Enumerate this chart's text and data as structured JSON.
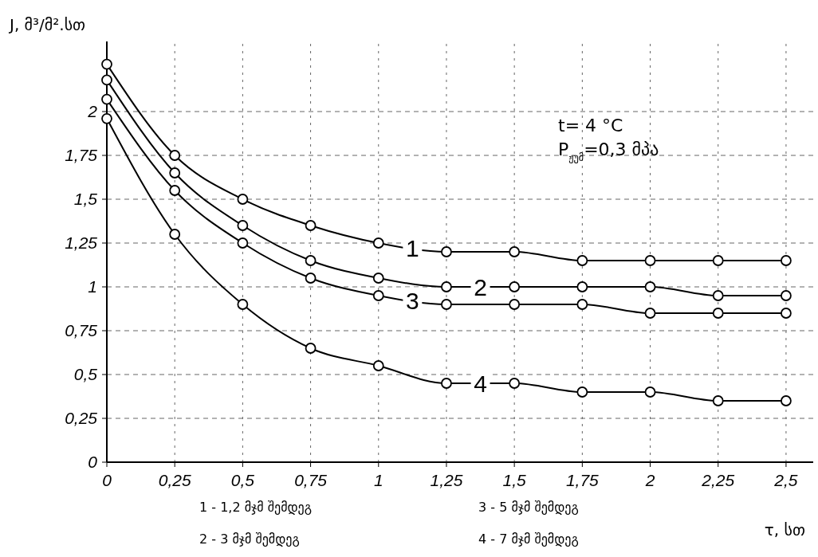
{
  "chart_data": {
    "type": "line",
    "xlabel": "τ, სთ",
    "ylabel": "J, მ³/მ².სთ",
    "x": [
      0,
      0.25,
      0.5,
      0.75,
      1,
      1.25,
      1.5,
      1.75,
      2,
      2.25,
      2.5
    ],
    "series": [
      {
        "name": "1",
        "color": "#000000",
        "values": [
          2.27,
          1.75,
          1.5,
          1.35,
          1.25,
          1.2,
          1.2,
          1.15,
          1.15,
          1.15,
          1.15
        ]
      },
      {
        "name": "2",
        "color": "#000000",
        "values": [
          2.18,
          1.65,
          1.35,
          1.15,
          1.05,
          1.0,
          1.0,
          1.0,
          1.0,
          0.95,
          0.95
        ]
      },
      {
        "name": "3",
        "color": "#000000",
        "values": [
          2.07,
          1.55,
          1.25,
          1.05,
          0.95,
          0.9,
          0.9,
          0.9,
          0.85,
          0.85,
          0.85
        ]
      },
      {
        "name": "4",
        "color": "#000000",
        "values": [
          1.96,
          1.3,
          0.9,
          0.65,
          0.55,
          0.45,
          0.45,
          0.4,
          0.4,
          0.35,
          0.35
        ]
      }
    ],
    "xlim": [
      0,
      2.6
    ],
    "ylim": [
      0,
      2.4
    ],
    "xticks": [
      0,
      {
        "value": 0.25,
        "label": "0,25"
      },
      {
        "value": 0.5,
        "label": "0,5"
      },
      {
        "value": 0.75,
        "label": "0,75"
      },
      1,
      {
        "value": 1.25,
        "label": "1,25"
      },
      {
        "value": 1.5,
        "label": "1,5"
      },
      {
        "value": 1.75,
        "label": "1,75"
      },
      2,
      {
        "value": 2.25,
        "label": "2,25"
      },
      {
        "value": 2.5,
        "label": "2,5"
      }
    ],
    "yticks": [
      0,
      {
        "value": 0.25,
        "label": "0,25"
      },
      {
        "value": 0.5,
        "label": "0,5"
      },
      {
        "value": 0.75,
        "label": "0,75"
      },
      1,
      {
        "value": 1.25,
        "label": "1,25"
      },
      {
        "value": 1.5,
        "label": "1,5"
      },
      {
        "value": 1.75,
        "label": "1,75"
      },
      2
    ],
    "grid": true,
    "marker": "circle",
    "line_style": "solid",
    "annotations": [
      "t= 4 °C",
      "P$_{ჟუმ}$=0,3 მპა",
      "1 - 1,2 მჯმ შემდეგ",
      "2 - 3 მჯმ შემდეგ",
      "3 - 5 მჯმ შემდეგ",
      "4 - 7 მჯმ შემდეგ"
    ]
  }
}
